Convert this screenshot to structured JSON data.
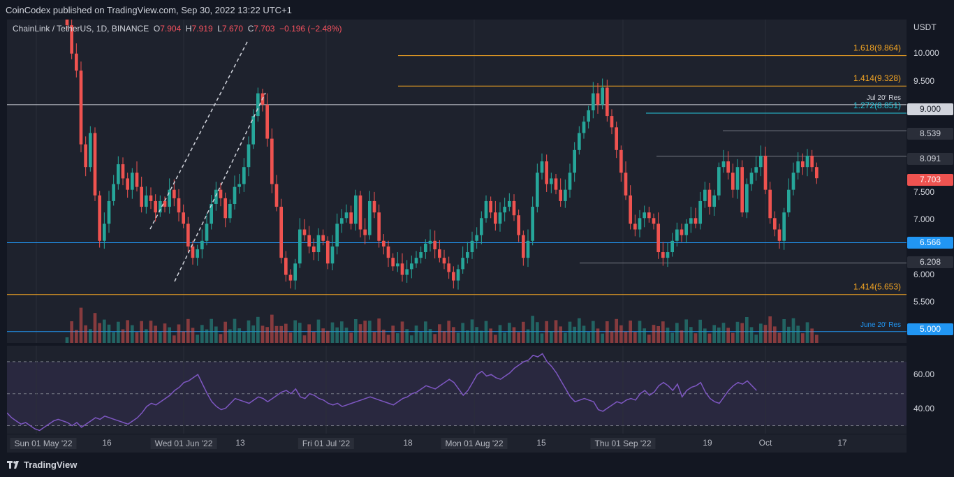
{
  "header": {
    "published": "CoinCodex published on TradingView.com, Sep 30, 2022 13:22 UTC+1"
  },
  "legend": {
    "symbol": "ChainLink / TetherUS, 1D, BINANCE",
    "o_label": "O",
    "o": "7.904",
    "h_label": "H",
    "h": "7.919",
    "l_label": "L",
    "l": "7.670",
    "c_label": "C",
    "c": "7.703",
    "change": "−0.196 (−2.48%)"
  },
  "y_axis": {
    "unit": "USDT",
    "ticks": [
      "10.000",
      "9.500",
      "7.500",
      "7.000",
      "6.000",
      "5.500"
    ],
    "badges": [
      {
        "label": "9.000",
        "style": "white"
      },
      {
        "label": "8.539",
        "style": "gray"
      },
      {
        "label": "8.091",
        "style": "gray"
      },
      {
        "label": "7.703",
        "style": "red"
      },
      {
        "label": "6.566",
        "style": "blue"
      },
      {
        "label": "6.208",
        "style": "gray"
      },
      {
        "label": "5.000",
        "style": "blue"
      }
    ],
    "rsi_ticks": [
      "60.00",
      "40.00"
    ]
  },
  "x_axis": {
    "ticks": [
      "16",
      "13",
      "18",
      "15",
      "19",
      "Oct",
      "17"
    ],
    "highlighted": [
      "Sun 01 May '22",
      "Wed 01 Jun '22",
      "Fri 01 Jul '22",
      "Mon 01 Aug '22",
      "Thu 01 Sep '22"
    ]
  },
  "levels": [
    {
      "label": "1.618(9.864)",
      "value": 9.864,
      "color": "#f5a623"
    },
    {
      "label": "1.414(9.328)",
      "value": 9.328,
      "color": "#f5a623"
    },
    {
      "label": "Jul 20' Res",
      "value": 9.0,
      "color": "#d1d4dc"
    },
    {
      "label": "1.272(8.851)",
      "value": 8.851,
      "color": "#26c6da"
    },
    {
      "label": "",
      "value": 8.539,
      "color": "#787b86"
    },
    {
      "label": "",
      "value": 8.091,
      "color": "#787b86"
    },
    {
      "label": "",
      "value": 6.566,
      "color": "#2196f3"
    },
    {
      "label": "",
      "value": 6.208,
      "color": "#787b86"
    },
    {
      "label": "1.414(5.653)",
      "value": 5.653,
      "color": "#f5a623"
    },
    {
      "label": "June 20' Res",
      "value": 5.0,
      "color": "#2196f3"
    }
  ],
  "footer": {
    "brand": "TradingView"
  },
  "colors": {
    "up": "#26a69a",
    "down": "#ef5350",
    "rsi": "#7e57c2",
    "bg": "#1e222d"
  },
  "chart_data": [
    {
      "type": "candlestick",
      "title": "ChainLink / TetherUS, 1D, BINANCE",
      "ylabel": "USDT",
      "ylim": [
        4.8,
        10.5
      ],
      "series": [
        {
          "name": "LINKUSDT",
          "close": [
            10.4,
            9.9,
            9.6,
            8.3,
            7.9,
            8.5,
            7.4,
            6.6,
            6.9,
            7.3,
            7.6,
            7.95,
            7.7,
            7.5,
            7.8,
            7.55,
            7.2,
            7.4,
            7.3,
            7.1,
            7.3,
            7.2,
            7.5,
            7.35,
            7.1,
            6.9,
            6.5,
            6.3,
            6.45,
            6.6,
            6.9,
            7.25,
            7.5,
            7.35,
            7.0,
            7.25,
            7.55,
            7.6,
            7.9,
            8.3,
            8.8,
            9.2,
            9.0,
            8.4,
            7.6,
            7.2,
            6.3,
            6.0,
            5.9,
            6.2,
            6.8,
            6.7,
            6.5,
            6.4,
            6.7,
            6.6,
            6.2,
            6.5,
            6.9,
            7.0,
            7.1,
            6.9,
            7.4,
            6.8,
            6.7,
            7.3,
            7.1,
            6.6,
            6.5,
            6.3,
            6.15,
            6.2,
            6.0,
            6.1,
            6.2,
            6.3,
            6.4,
            6.55,
            6.6,
            6.45,
            6.3,
            6.2,
            6.05,
            5.9,
            6.1,
            6.3,
            6.4,
            6.6,
            6.7,
            7.0,
            7.3,
            7.1,
            6.9,
            7.1,
            7.2,
            7.3,
            7.05,
            6.7,
            6.3,
            6.6,
            7.2,
            7.8,
            8.0,
            7.6,
            7.7,
            7.5,
            7.3,
            7.5,
            7.8,
            8.2,
            8.5,
            8.7,
            8.9,
            9.2,
            9.0,
            9.3,
            8.8,
            8.6,
            8.2,
            7.8,
            7.4,
            6.9,
            6.8,
            7.0,
            7.1,
            7.0,
            6.9,
            6.4,
            6.3,
            6.4,
            6.6,
            6.8,
            6.7,
            6.9,
            7.0,
            6.9,
            7.3,
            7.5,
            7.2,
            7.4,
            7.9,
            8.0,
            7.8,
            7.5,
            7.9,
            7.1,
            7.6,
            7.8,
            7.9,
            8.1,
            7.5,
            7.0,
            6.8,
            6.6,
            7.1,
            7.5,
            7.8,
            8.0,
            7.9,
            8.1,
            7.9,
            7.703
          ]
        }
      ]
    },
    {
      "type": "line",
      "title": "RSI",
      "ylim": [
        25,
        80
      ],
      "series": [
        {
          "name": "RSI",
          "values": [
            38,
            35,
            33,
            31,
            32,
            30,
            28,
            27,
            29,
            31,
            33,
            34,
            33,
            32,
            30,
            32,
            29,
            31,
            33,
            35,
            34,
            36,
            35,
            34,
            33,
            32,
            31,
            33,
            35,
            38,
            42,
            44,
            43,
            45,
            47,
            49,
            52,
            54,
            57,
            58,
            60,
            62,
            56,
            50,
            45,
            42,
            40,
            41,
            44,
            47,
            46,
            45,
            44,
            46,
            48,
            47,
            45,
            47,
            49,
            51,
            52,
            50,
            53,
            48,
            47,
            50,
            49,
            47,
            46,
            44,
            43,
            44,
            42,
            43,
            44,
            45,
            46,
            47,
            48,
            47,
            46,
            45,
            44,
            43,
            45,
            47,
            48,
            50,
            51,
            53,
            55,
            54,
            53,
            55,
            57,
            59,
            57,
            53,
            49,
            52,
            57,
            62,
            64,
            61,
            62,
            60,
            59,
            61,
            63,
            66,
            68,
            70,
            71,
            74,
            73,
            75,
            70,
            67,
            63,
            58,
            53,
            48,
            45,
            46,
            47,
            46,
            45,
            40,
            39,
            41,
            43,
            45,
            44,
            46,
            47,
            46,
            50,
            52,
            49,
            51,
            55,
            57,
            55,
            52,
            56,
            48,
            52,
            54,
            55,
            57,
            51,
            47,
            45,
            44,
            48,
            52,
            55,
            57,
            56,
            58,
            55,
            52
          ]
        }
      ]
    }
  ]
}
